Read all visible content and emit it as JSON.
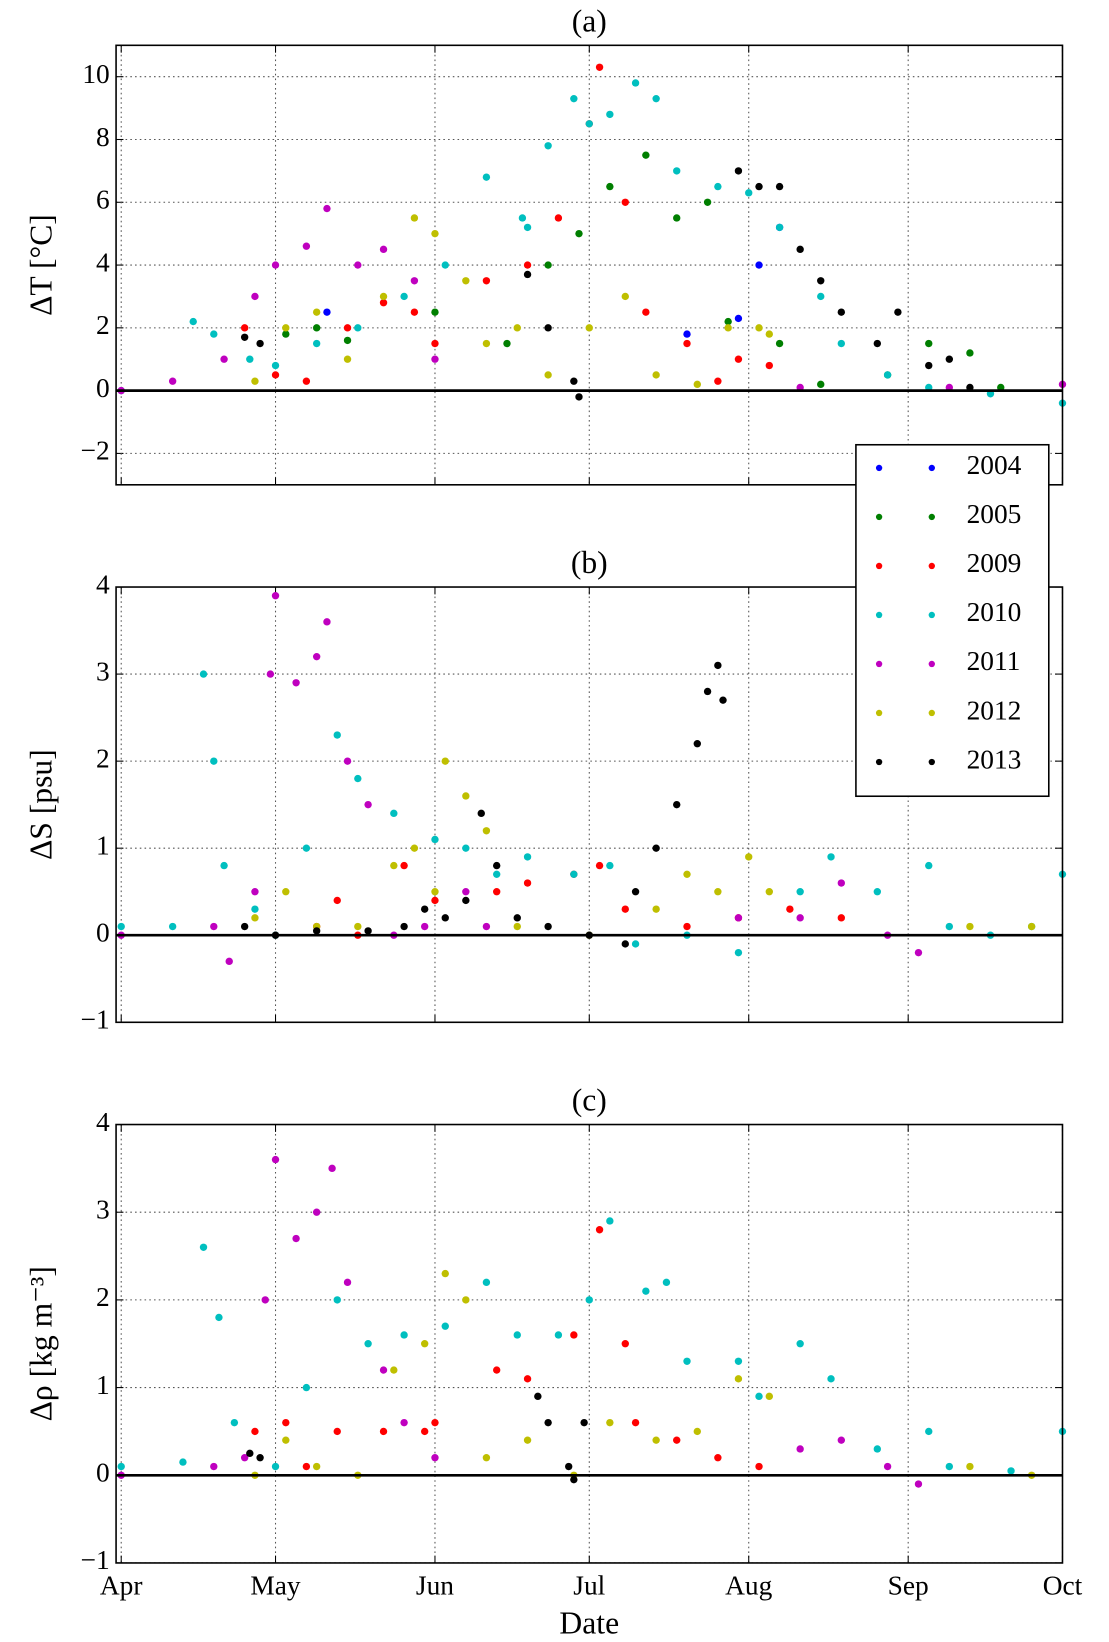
{
  "chart_data": [
    {
      "type": "scatter",
      "title": "(a)",
      "ylabel": "ΔT [°C]",
      "xlim": [
        -1,
        183
      ],
      "xticks": [
        0,
        30,
        61,
        91,
        122,
        153,
        183
      ],
      "ylim": [
        -3,
        11
      ],
      "yticks": [
        {
          "value": -2,
          "label": "−2"
        },
        0,
        2,
        4,
        6,
        8,
        10
      ],
      "grid": true,
      "axhline": 0,
      "legend": "lower right",
      "series": [
        {
          "name": "2004",
          "color": "#0000ff",
          "x": [
            40,
            110,
            120,
            124,
            128
          ],
          "values": [
            2.5,
            1.8,
            2.3,
            4.0,
            5.2
          ]
        },
        {
          "name": "2005",
          "color": "#007f00",
          "x": [
            32,
            38,
            44,
            61,
            75,
            83,
            89,
            95,
            102,
            108,
            114,
            118,
            128,
            136,
            149,
            157,
            165,
            171
          ],
          "values": [
            1.8,
            2.0,
            1.6,
            2.5,
            1.5,
            4.0,
            5.0,
            6.5,
            7.5,
            5.5,
            6.0,
            2.2,
            1.5,
            0.2,
            0.5,
            1.5,
            1.2,
            0.1
          ]
        },
        {
          "name": "2009",
          "color": "#ff0000",
          "x": [
            24,
            30,
            36,
            44,
            51,
            57,
            61,
            71,
            79,
            85,
            91,
            93,
            98,
            102,
            110,
            116,
            120,
            126
          ],
          "values": [
            2.0,
            0.5,
            0.3,
            2.0,
            2.8,
            2.5,
            1.5,
            3.5,
            4.0,
            5.5,
            8.5,
            10.3,
            6.0,
            2.5,
            1.5,
            0.3,
            1.0,
            0.8
          ]
        },
        {
          "name": "2010",
          "color": "#00bfbf",
          "x": [
            0,
            14,
            18,
            25,
            30,
            38,
            46,
            55,
            63,
            71,
            78,
            79,
            83,
            88,
            91,
            95,
            100,
            104,
            108,
            116,
            122,
            128,
            136,
            140,
            149,
            157,
            169,
            183
          ],
          "values": [
            0,
            2.2,
            1.8,
            1.0,
            0.8,
            1.5,
            2.0,
            3.0,
            4.0,
            6.8,
            5.5,
            5.2,
            7.8,
            9.3,
            8.5,
            8.8,
            9.8,
            9.3,
            7.0,
            6.5,
            6.3,
            5.2,
            3.0,
            1.5,
            0.5,
            0.1,
            -0.1,
            -0.4
          ]
        },
        {
          "name": "2011",
          "color": "#bf00bf",
          "x": [
            0,
            10,
            20,
            26,
            30,
            36,
            40,
            46,
            51,
            57,
            61,
            132,
            161,
            183
          ],
          "values": [
            0,
            0.3,
            1.0,
            3.0,
            4.0,
            4.6,
            5.8,
            4.0,
            4.5,
            3.5,
            1.0,
            0.1,
            0.1,
            0.2
          ]
        },
        {
          "name": "2012",
          "color": "#bfbf00",
          "x": [
            26,
            32,
            38,
            44,
            51,
            57,
            61,
            67,
            71,
            77,
            83,
            91,
            98,
            104,
            112,
            118,
            124,
            126
          ],
          "values": [
            0.3,
            2.0,
            2.5,
            1.0,
            3.0,
            5.5,
            5.0,
            3.5,
            1.5,
            2.0,
            0.5,
            2.0,
            3.0,
            0.5,
            0.2,
            2.0,
            2.0,
            1.8
          ]
        },
        {
          "name": "2013",
          "color": "#000000",
          "x": [
            24,
            27,
            79,
            83,
            88,
            89,
            120,
            124,
            128,
            132,
            136,
            140,
            147,
            151,
            157,
            161,
            165
          ],
          "values": [
            1.7,
            1.5,
            3.7,
            2.0,
            0.3,
            -0.2,
            7.0,
            6.5,
            6.5,
            4.5,
            3.5,
            2.5,
            1.5,
            2.5,
            0.8,
            1.0,
            0.1
          ]
        }
      ]
    },
    {
      "type": "scatter",
      "title": "(b)",
      "ylabel": "ΔS [psu]",
      "xlim": [
        -1,
        183
      ],
      "xticks": [
        0,
        30,
        61,
        91,
        122,
        153,
        183
      ],
      "ylim": [
        -1,
        4
      ],
      "yticks": [
        {
          "value": -1,
          "label": "−1"
        },
        0,
        1,
        2,
        3,
        4
      ],
      "grid": true,
      "axhline": 0,
      "series": [
        {
          "color": "#ff0000",
          "x": [
            38,
            42,
            46,
            55,
            61,
            73,
            79,
            88,
            93,
            98,
            110,
            120,
            130,
            140
          ],
          "values": [
            0.1,
            0.4,
            0.0,
            0.8,
            0.4,
            0.5,
            0.6,
            0.7,
            0.8,
            0.3,
            0.1,
            0.2,
            0.3,
            0.2
          ]
        },
        {
          "color": "#00bfbf",
          "x": [
            0,
            10,
            16,
            18,
            20,
            26,
            30,
            36,
            42,
            46,
            53,
            61,
            67,
            73,
            79,
            88,
            95,
            100,
            110,
            120,
            132,
            138,
            147,
            157,
            161,
            169,
            177,
            183
          ],
          "values": [
            0.1,
            0.1,
            3.0,
            2.0,
            0.8,
            0.3,
            0.0,
            1.0,
            2.3,
            1.8,
            1.4,
            1.1,
            1.0,
            0.7,
            0.9,
            0.7,
            0.8,
            -0.1,
            0.0,
            -0.2,
            0.5,
            0.9,
            0.5,
            0.8,
            0.1,
            0.0,
            0.1,
            0.7
          ]
        },
        {
          "color": "#bf00bf",
          "x": [
            0,
            18,
            21,
            26,
            29,
            30,
            34,
            38,
            40,
            44,
            48,
            53,
            59,
            67,
            71,
            120,
            132,
            140,
            149,
            155
          ],
          "values": [
            0.0,
            0.1,
            -0.3,
            0.5,
            3.0,
            3.9,
            2.9,
            3.2,
            3.6,
            2.0,
            1.5,
            0.0,
            0.1,
            0.5,
            0.1,
            0.2,
            0.2,
            0.6,
            0.0,
            -0.2
          ]
        },
        {
          "color": "#bfbf00",
          "x": [
            26,
            32,
            38,
            46,
            53,
            57,
            61,
            63,
            67,
            71,
            77,
            91,
            104,
            110,
            116,
            122,
            126,
            165,
            177
          ],
          "values": [
            0.2,
            0.5,
            0.1,
            0.1,
            0.8,
            1.0,
            0.5,
            2.0,
            1.6,
            1.2,
            0.1,
            0.0,
            0.3,
            0.7,
            0.5,
            0.9,
            0.5,
            0.1,
            0.1
          ]
        },
        {
          "color": "#000000",
          "x": [
            24,
            30,
            38,
            48,
            55,
            59,
            63,
            67,
            70,
            73,
            77,
            83,
            91,
            98,
            100,
            104,
            108,
            112,
            114,
            116,
            117
          ],
          "values": [
            0.1,
            0.0,
            0.05,
            0.05,
            0.1,
            0.3,
            0.2,
            0.4,
            1.4,
            0.8,
            0.2,
            0.1,
            0.0,
            -0.1,
            0.5,
            1.0,
            1.5,
            2.2,
            2.8,
            3.1,
            2.7
          ]
        }
      ]
    },
    {
      "type": "scatter",
      "title": "(c)",
      "ylabel": "Δρ [kg m⁻³]",
      "xlabel": "Date",
      "xlim": [
        -1,
        183
      ],
      "xticks": [
        {
          "value": 0,
          "label": "Apr"
        },
        {
          "value": 30,
          "label": "May"
        },
        {
          "value": 61,
          "label": "Jun"
        },
        {
          "value": 91,
          "label": "Jul"
        },
        {
          "value": 122,
          "label": "Aug"
        },
        {
          "value": 153,
          "label": "Sep"
        },
        {
          "value": 183,
          "label": "Oct"
        }
      ],
      "ylim": [
        -1,
        4
      ],
      "yticks": [
        {
          "value": -1,
          "label": "−1"
        },
        0,
        1,
        2,
        3,
        4
      ],
      "grid": true,
      "axhline": 0,
      "series": [
        {
          "color": "#ff0000",
          "x": [
            26,
            32,
            36,
            42,
            51,
            59,
            61,
            73,
            79,
            88,
            93,
            98,
            100,
            108,
            116,
            124
          ],
          "values": [
            0.5,
            0.6,
            0.1,
            0.5,
            0.5,
            0.5,
            0.6,
            1.2,
            1.1,
            1.6,
            2.8,
            1.5,
            0.6,
            0.4,
            0.2,
            0.1
          ]
        },
        {
          "color": "#00bfbf",
          "x": [
            0,
            12,
            16,
            19,
            22,
            30,
            36,
            42,
            48,
            55,
            63,
            71,
            77,
            85,
            91,
            95,
            102,
            106,
            110,
            120,
            124,
            132,
            138,
            147,
            157,
            161,
            173,
            183
          ],
          "values": [
            0.1,
            0.15,
            2.6,
            1.8,
            0.6,
            0.1,
            1.0,
            2.0,
            1.5,
            1.6,
            1.7,
            2.2,
            1.6,
            1.6,
            2.0,
            2.9,
            2.1,
            2.2,
            1.3,
            1.3,
            0.9,
            1.5,
            1.1,
            0.3,
            0.5,
            0.1,
            0.05,
            0.5
          ]
        },
        {
          "color": "#bf00bf",
          "x": [
            0,
            18,
            24,
            28,
            30,
            34,
            38,
            41,
            44,
            51,
            55,
            61,
            132,
            140,
            149,
            155
          ],
          "values": [
            0,
            0.1,
            0.2,
            2.0,
            3.6,
            2.7,
            3.0,
            3.5,
            2.2,
            1.2,
            0.6,
            0.2,
            0.3,
            0.4,
            0.1,
            -0.1
          ]
        },
        {
          "color": "#bfbf00",
          "x": [
            26,
            32,
            38,
            46,
            53,
            59,
            63,
            67,
            71,
            79,
            88,
            95,
            104,
            112,
            120,
            126,
            165,
            177
          ],
          "values": [
            0.0,
            0.4,
            0.1,
            0.0,
            1.2,
            1.5,
            2.3,
            2.0,
            0.2,
            0.4,
            0.0,
            0.6,
            0.4,
            0.5,
            1.1,
            0.9,
            0.1,
            0.0
          ]
        },
        {
          "color": "#000000",
          "x": [
            25,
            27,
            81,
            83,
            87,
            88,
            90
          ],
          "values": [
            0.25,
            0.2,
            0.9,
            0.6,
            0.1,
            -0.05,
            0.6
          ]
        }
      ]
    }
  ]
}
